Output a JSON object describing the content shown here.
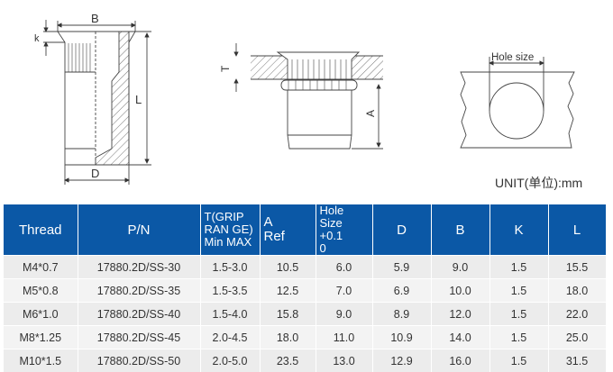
{
  "drawings": {
    "labels": {
      "B": "B",
      "k": "k",
      "L": "L",
      "D": "D",
      "T": "T",
      "A": "A",
      "hole_size": "Hole size"
    }
  },
  "unit_label": "UNIT(单位):mm",
  "table": {
    "header_color": "#0b58a6",
    "headers": {
      "thread": "Thread",
      "pn": "P/N",
      "t_line1": "T(GRIP",
      "t_line2": "RAN GE)",
      "t_line3": "Min MAX",
      "a_line1": "A",
      "a_line2": "Ref",
      "hole_line1": "Hole Size",
      "hole_line2": "+0.1",
      "hole_line3": "0",
      "d": "D",
      "b": "B",
      "k": "K",
      "l": "L"
    },
    "rows": [
      [
        "M4*0.7",
        "17880.2D/SS-30",
        "1.5-3.0",
        "10.5",
        "6.0",
        "5.9",
        "9.0",
        "1.5",
        "15.5"
      ],
      [
        "M5*0.8",
        "17880.2D/SS-35",
        "1.5-3.5",
        "12.5",
        "7.0",
        "6.9",
        "10.0",
        "1.5",
        "18.0"
      ],
      [
        "M6*1.0",
        "17880.2D/SS-40",
        "1.5-4.0",
        "15.8",
        "9.0",
        "8.9",
        "12.0",
        "1.5",
        "22.0"
      ],
      [
        "M8*1.25",
        "17880.2D/SS-45",
        "2.0-4.5",
        "18.0",
        "11.0",
        "10.9",
        "14.0",
        "1.5",
        "25.0"
      ],
      [
        "M10*1.5",
        "17880.2D/SS-50",
        "2.0-5.0",
        "23.5",
        "13.0",
        "12.9",
        "16.0",
        "1.5",
        "31.5"
      ]
    ]
  }
}
